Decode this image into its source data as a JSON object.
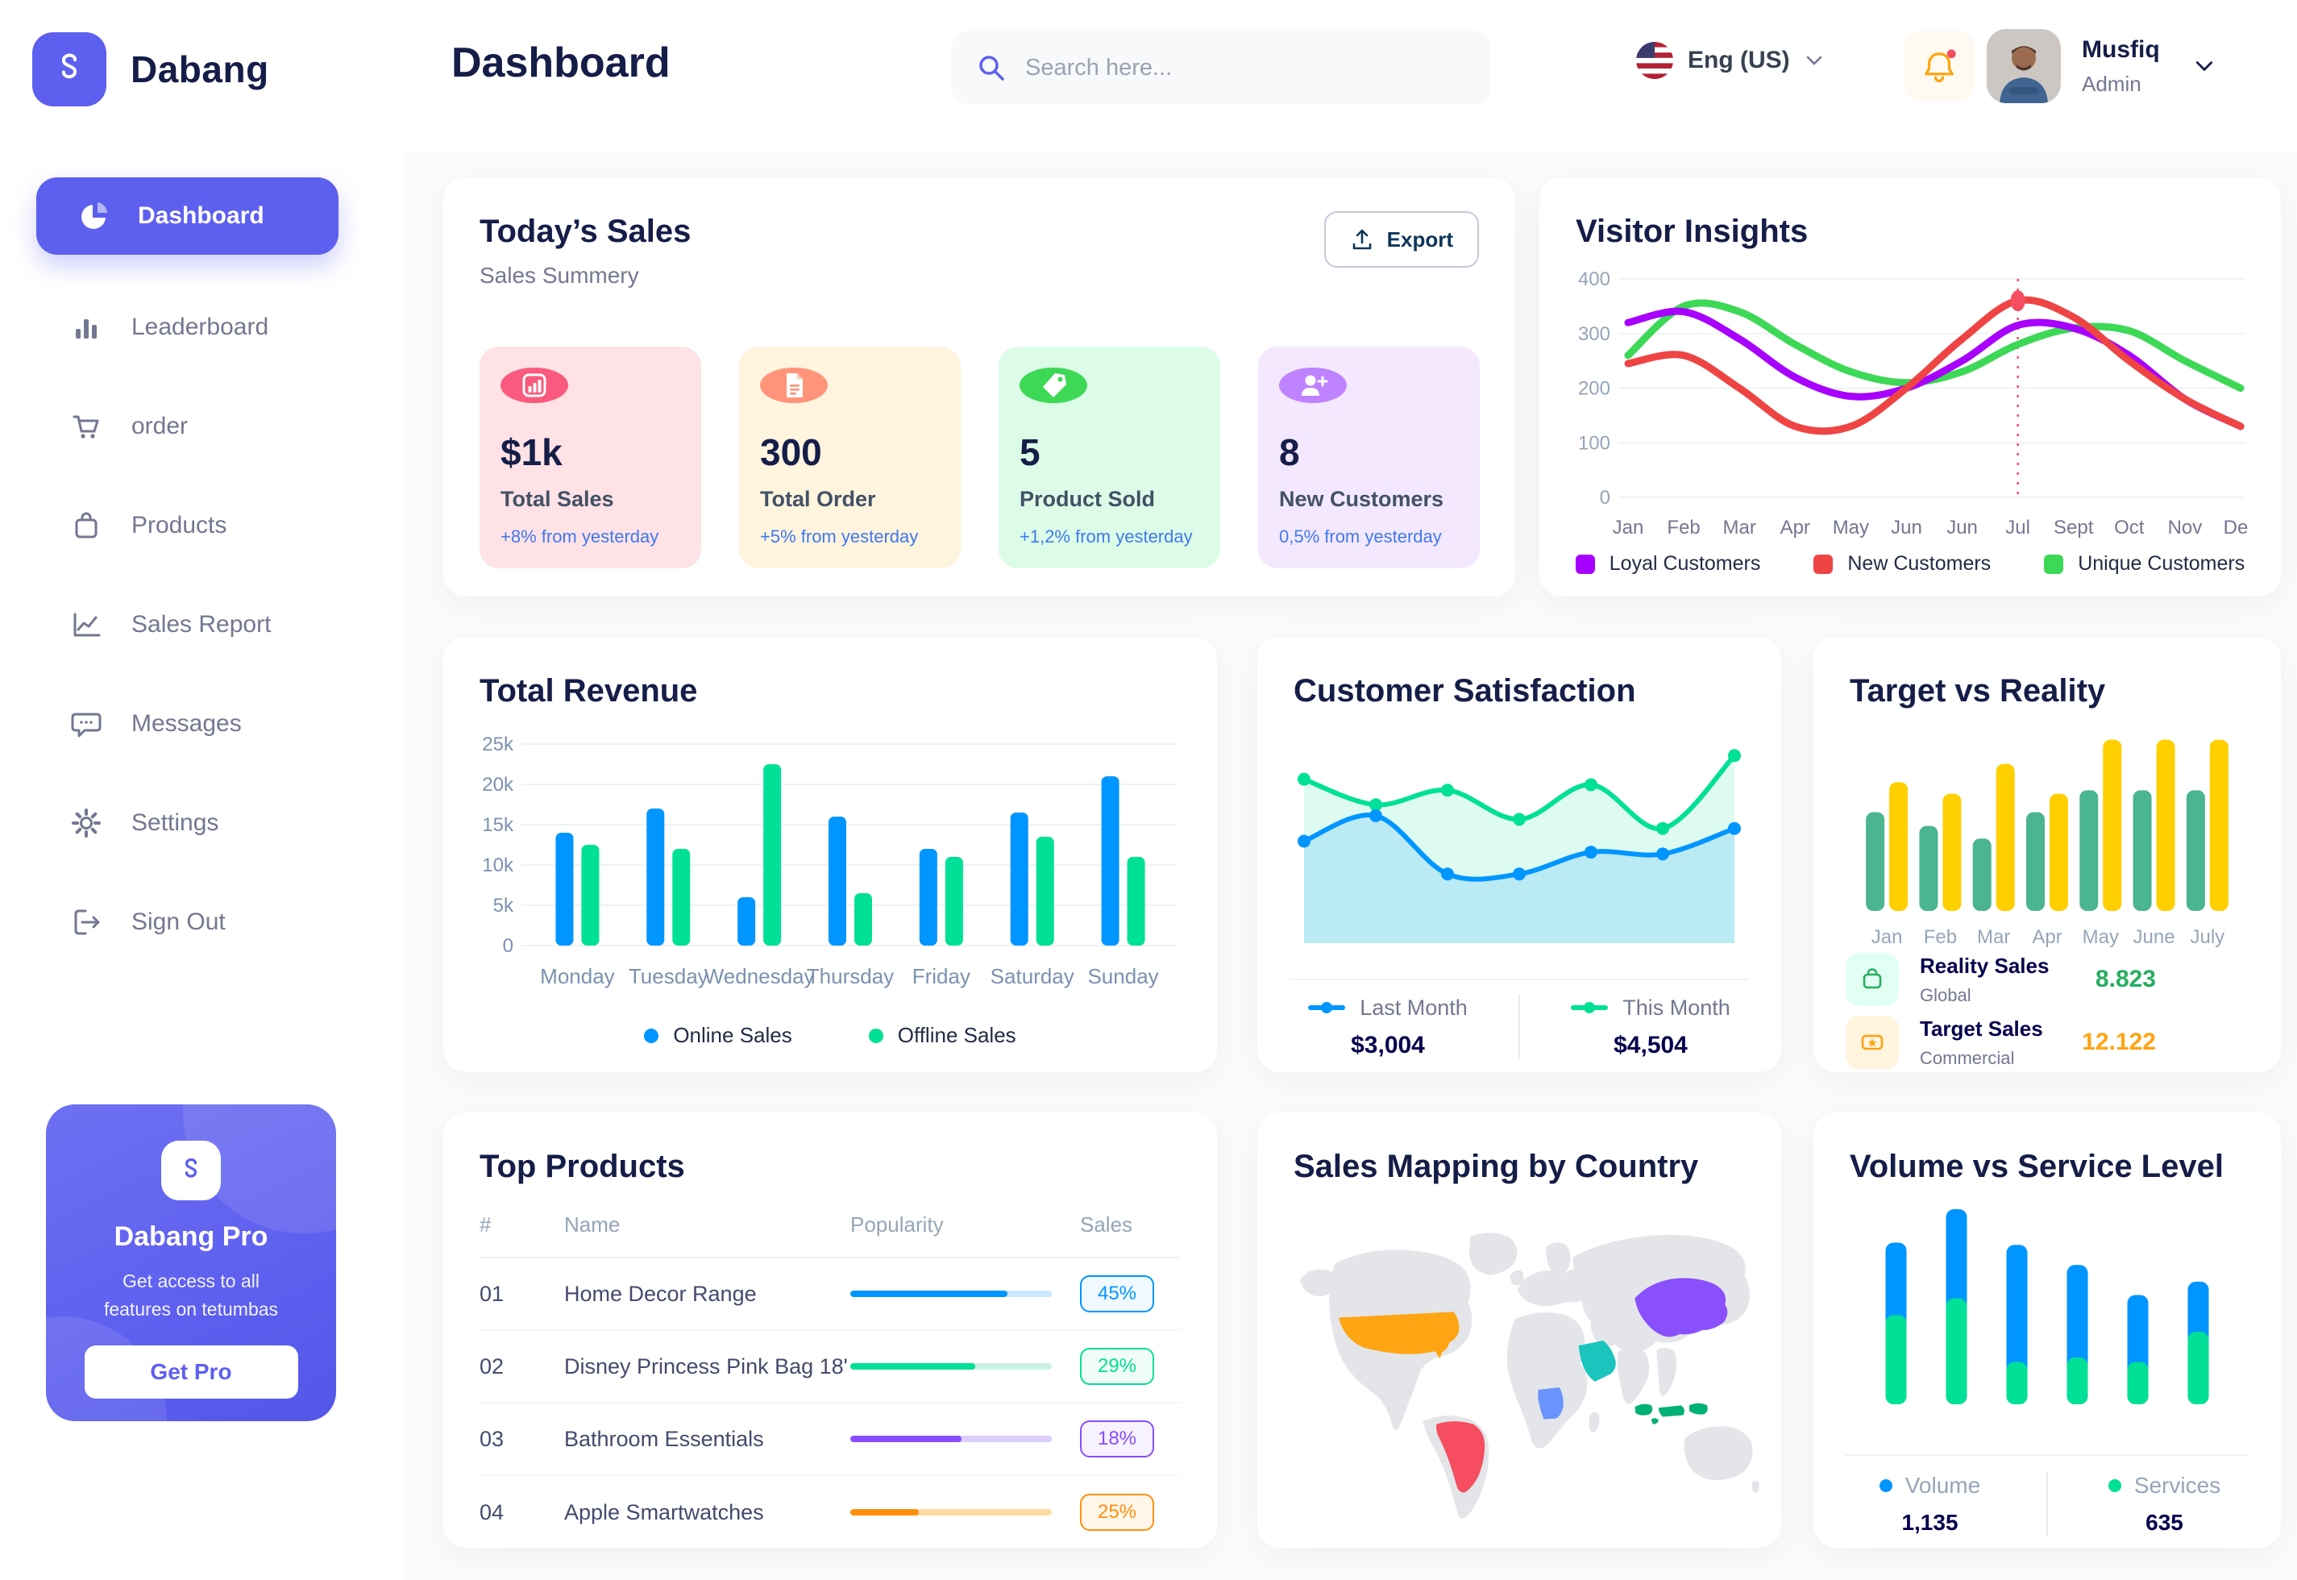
{
  "brand": {
    "name": "Dabang",
    "accent_color": "#5D5FEF"
  },
  "header": {
    "title": "Dashboard",
    "search_placeholder": "Search here...",
    "language": "Eng (US)",
    "user_name": "Musfiq",
    "user_role": "Admin"
  },
  "sidebar": {
    "items": [
      {
        "label": "Dashboard",
        "icon": "pie-chart",
        "active": true
      },
      {
        "label": "Leaderboard",
        "icon": "bar-chart"
      },
      {
        "label": "order",
        "icon": "cart"
      },
      {
        "label": "Products",
        "icon": "shopping-bag"
      },
      {
        "label": "Sales Report",
        "icon": "line-chart"
      },
      {
        "label": "Messages",
        "icon": "chat-bubble"
      },
      {
        "label": "Settings",
        "icon": "gear"
      },
      {
        "label": "Sign Out",
        "icon": "sign-out"
      }
    ],
    "pro_card": {
      "title": "Dabang Pro",
      "subtitle": "Get access to all features on tetumbas",
      "button": "Get Pro"
    }
  },
  "today_sales": {
    "title": "Today’s Sales",
    "subtitle": "Sales Summery",
    "export_label": "Export",
    "delta_color": "#4079ED",
    "cards": [
      {
        "value": "$1k",
        "label": "Total Sales",
        "delta": "+8% from yesterday",
        "bg": "#FFE2E5",
        "icon_bg": "#FA5A7D",
        "icon": "chart-board"
      },
      {
        "value": "300",
        "label": "Total Order",
        "delta": "+5% from yesterday",
        "bg": "#FFF4DE",
        "icon_bg": "#FF947A",
        "icon": "order-file"
      },
      {
        "value": "5",
        "label": "Product Sold",
        "delta": "+1,2% from yesterday",
        "bg": "#DCFCE7",
        "icon_bg": "#3CD856",
        "icon": "price-tag"
      },
      {
        "value": "8",
        "label": "New Customers",
        "delta": "0,5% from yesterday",
        "bg": "#F3E8FF",
        "icon_bg": "#BF83FF",
        "icon": "user-plus"
      }
    ]
  },
  "chart_data": [
    {
      "id": "visitor_insights",
      "type": "line",
      "title": "Visitor Insights",
      "x": [
        "Jan",
        "Feb",
        "Mar",
        "Apr",
        "May",
        "Jun",
        "Jun",
        "Jul",
        "Sept",
        "Oct",
        "Nov",
        "Des"
      ],
      "ylim": [
        0,
        400
      ],
      "yticks": [
        0,
        100,
        200,
        300,
        400
      ],
      "grid": true,
      "legend_position": "bottom",
      "series": [
        {
          "name": "Loyal Customers",
          "color": "#A700FF",
          "values": [
            320,
            340,
            290,
            220,
            185,
            200,
            250,
            315,
            310,
            260,
            180,
            130
          ]
        },
        {
          "name": "New Customers",
          "color": "#EF4444",
          "values": [
            245,
            260,
            200,
            130,
            130,
            200,
            290,
            360,
            330,
            250,
            180,
            130
          ]
        },
        {
          "name": "Unique Customers",
          "color": "#3CD856",
          "values": [
            260,
            350,
            340,
            280,
            230,
            210,
            230,
            280,
            310,
            305,
            250,
            200
          ]
        }
      ],
      "highlight": {
        "series": "New Customers",
        "x_label": "Jul",
        "x_index": 7,
        "value": 360,
        "color": "#F64E60"
      }
    },
    {
      "id": "total_revenue",
      "type": "bar",
      "title": "Total Revenue",
      "categories": [
        "Monday",
        "Tuesday",
        "Wednesday",
        "Thursday",
        "Friday",
        "Saturday",
        "Sunday"
      ],
      "ylim": [
        0,
        25000
      ],
      "ytick_labels": [
        "0",
        "5k",
        "10k",
        "15k",
        "20k",
        "25k"
      ],
      "grid": true,
      "legend_position": "bottom",
      "series": [
        {
          "name": "Online Sales",
          "color": "#0095FF",
          "values": [
            14000,
            17000,
            6000,
            16000,
            12000,
            16500,
            21000
          ]
        },
        {
          "name": "Offline Sales",
          "color": "#00E096",
          "values": [
            12500,
            12000,
            22500,
            6500,
            11000,
            13500,
            11000
          ]
        }
      ]
    },
    {
      "id": "customer_satisfaction",
      "type": "area",
      "title": "Customer Satisfaction",
      "x": [
        1,
        2,
        3,
        4,
        5,
        6,
        7
      ],
      "ylim": [
        0,
        100
      ],
      "grid": false,
      "legend_position": "bottom",
      "series": [
        {
          "name": "Last Month",
          "color": "#0095FF",
          "total": "$3,004",
          "values": [
            48,
            62,
            30,
            30,
            42,
            41,
            55
          ]
        },
        {
          "name": "This Month",
          "color": "#00E096",
          "total": "$4,504",
          "values": [
            82,
            68,
            76,
            60,
            79,
            55,
            95
          ]
        }
      ]
    },
    {
      "id": "target_vs_reality",
      "type": "bar",
      "title": "Target vs Reality",
      "categories": [
        "Jan",
        "Feb",
        "Mar",
        "Apr",
        "May",
        "June",
        "July"
      ],
      "ylim": [
        0,
        16
      ],
      "grid": false,
      "legend_position": "bottom",
      "series": [
        {
          "name": "Reality Sales",
          "color": "#4AB58E",
          "values": [
            8.6,
            7.4,
            6.3,
            8.6,
            10.5,
            10.5,
            10.5
          ]
        },
        {
          "name": "Target Sales",
          "color": "#FFCF00",
          "values": [
            11.2,
            10.2,
            12.8,
            10.2,
            14.9,
            14.9,
            14.9
          ]
        }
      ],
      "summary": {
        "reality": {
          "label": "Reality Sales",
          "sub": "Global",
          "value": "8.823",
          "value_color": "#27AE60",
          "icon_bg": "#E2FFF3"
        },
        "target": {
          "label": "Target Sales",
          "sub": "Commercial",
          "value": "12.122",
          "value_color": "#FFA412",
          "icon_bg": "#FFF4DE"
        }
      }
    },
    {
      "id": "top_products",
      "type": "table",
      "title": "Top Products",
      "headers": [
        "#",
        "Name",
        "Popularity",
        "Sales"
      ],
      "rows": [
        {
          "num": "01",
          "name": "Home Decor Range",
          "popularity": 78,
          "sales": "45%",
          "color": "#0095FF",
          "track": "#CDE7FF",
          "badge_bg": "#F0F9FF"
        },
        {
          "num": "02",
          "name": "Disney Princess Pink Bag 18'",
          "popularity": 62,
          "sales": "29%",
          "color": "#00E096",
          "track": "#CBF3E2",
          "badge_bg": "#F0FDF6"
        },
        {
          "num": "03",
          "name": "Bathroom Essentials",
          "popularity": 55,
          "sales": "18%",
          "color": "#884DFF",
          "track": "#DCCDFF",
          "badge_bg": "#F7F2FF"
        },
        {
          "num": "04",
          "name": "Apple Smartwatches",
          "popularity": 34,
          "sales": "25%",
          "color": "#FF8F0D",
          "track": "#FFD9A3",
          "badge_bg": "#FFF6E9"
        }
      ]
    },
    {
      "id": "volume_vs_service",
      "type": "bar",
      "subtype": "stacked",
      "title": "Volume vs Service Level",
      "legend_position": "bottom",
      "series": [
        {
          "name": "Volume",
          "color": "#0095FF",
          "total": "1,135",
          "values": [
            6.5,
            8,
            10.5,
            8.3,
            6,
            4.5
          ]
        },
        {
          "name": "Services",
          "color": "#00E096",
          "total": "635",
          "values": [
            8,
            9.5,
            3.8,
            4.2,
            3.8,
            6.5
          ]
        }
      ]
    }
  ],
  "sales_mapping": {
    "title": "Sales Mapping by Country",
    "land_color": "#E3E5E9",
    "countries": [
      {
        "name": "United States",
        "color": "#FFA412"
      },
      {
        "name": "Brazil",
        "color": "#F64E60"
      },
      {
        "name": "China",
        "color": "#8950FC"
      },
      {
        "name": "Saudi Arabia",
        "color": "#1BC5BD"
      },
      {
        "name": "Democratic Republic of Congo",
        "color": "#6993FF"
      },
      {
        "name": "Indonesia",
        "color": "#00B074"
      }
    ]
  }
}
